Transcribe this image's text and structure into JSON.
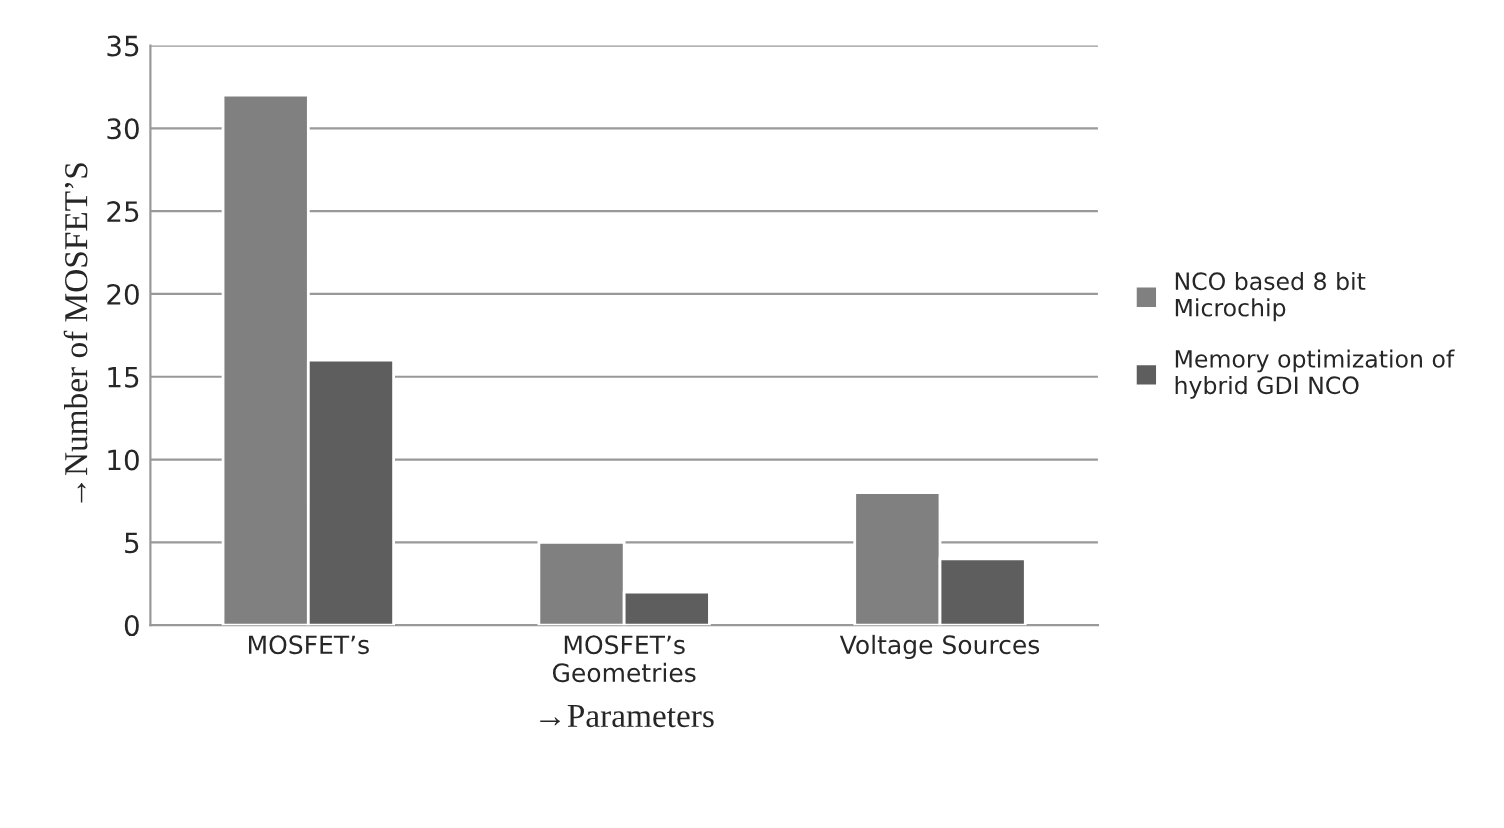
{
  "chart_data": {
    "type": "bar",
    "categories": [
      "MOSFET’s",
      "MOSFET’s\nGeometries",
      "Voltage Sources"
    ],
    "series": [
      {
        "name": "NCO based 8 bit\nMicrochip",
        "color": "#808080",
        "values": [
          32,
          5,
          8
        ]
      },
      {
        "name": "Memory optimization of\nhybrid GDI NCO",
        "color": "#5e5e5e",
        "values": [
          16,
          2,
          4
        ]
      }
    ],
    "xlabel": "→Parameters",
    "ylabel": "→Number of MOSFET’S",
    "ylim": [
      0,
      35
    ],
    "yticks": [
      0,
      5,
      10,
      15,
      20,
      25,
      30,
      35
    ],
    "grid": "y",
    "legend": "right"
  }
}
